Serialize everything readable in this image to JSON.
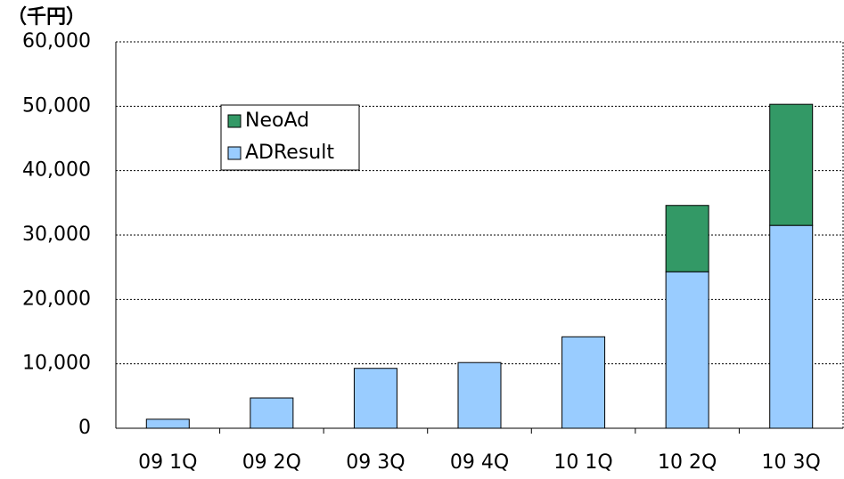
{
  "chart_data": {
    "type": "bar",
    "stacked": true,
    "y_axis_label": "（千円）",
    "categories": [
      "09 1Q",
      "09 2Q",
      "09 3Q",
      "09 4Q",
      "10 1Q",
      "10 2Q",
      "10 3Q"
    ],
    "series": [
      {
        "name": "ADResult",
        "color": "#99ccff",
        "values": [
          1400,
          4700,
          9300,
          10200,
          14200,
          24300,
          31500
        ]
      },
      {
        "name": "NeoAd",
        "color": "#339966",
        "values": [
          null,
          null,
          null,
          null,
          null,
          10300,
          18800
        ]
      }
    ],
    "ylim": [
      0,
      60000
    ],
    "yticks": [
      0,
      {
        "value": 10000,
        "label": "10,000"
      },
      {
        "value": 20000,
        "label": "20,000"
      },
      {
        "value": 30000,
        "label": "30,000"
      },
      {
        "value": 40000,
        "label": "40,000"
      },
      {
        "value": 50000,
        "label": "50,000"
      },
      {
        "value": 60000,
        "label": "60,000"
      }
    ],
    "grid": true,
    "legend": "top-left"
  }
}
